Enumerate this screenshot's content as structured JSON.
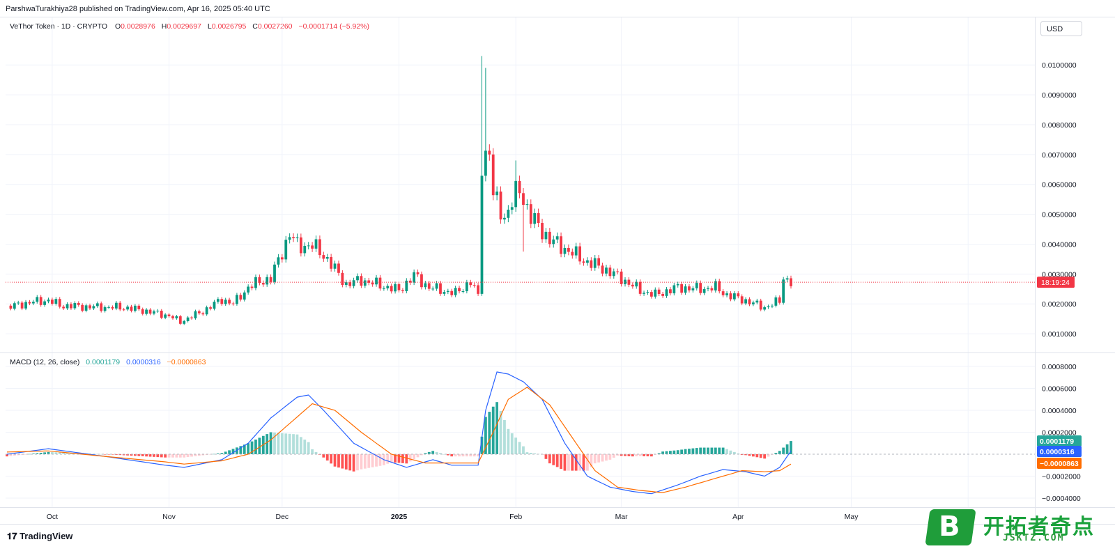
{
  "header": {
    "published_line": "ParshwaTurakhiya28 published on TradingView.com, Apr 16, 2025 05:40 UTC"
  },
  "symbol": {
    "name": "VeThor Token · 1D · CRYPTO",
    "open_label": "O",
    "open": "0.0028976",
    "high_label": "H",
    "high": "0.0029697",
    "low_label": "L",
    "low": "0.0026795",
    "close_label": "C",
    "close": "0.0027260",
    "change": "−0.0001714 (−5.92%)"
  },
  "currency_button": "USD",
  "countdown": "18:19:24",
  "macd": {
    "name": "MACD (12, 26, close)",
    "histogram": "0.0001179",
    "macd_line": "0.0000316",
    "signal_line": "−0.0000863"
  },
  "brand": {
    "tradingview": "TradingView"
  },
  "watermark": {
    "cn": "开拓者奇点",
    "en": "JSKTZ.COM",
    "badge": "B"
  },
  "colors": {
    "up": "#089981",
    "down": "#f23645",
    "macd_line": "#2962ff",
    "signal_line": "#ff6d00",
    "hist_up_strong": "#26a69a",
    "hist_up_weak": "#b2dfdb",
    "hist_down_strong": "#ff5252",
    "hist_down_weak": "#ffcdd2"
  },
  "chart_data": [
    {
      "type": "candlestick",
      "title": "VeThor Token · 1D · CRYPTO",
      "currency": "USD",
      "y_ticks": [
        "0.0100000",
        "0.0090000",
        "0.0080000",
        "0.0070000",
        "0.0060000",
        "0.0050000",
        "0.0040000",
        "0.0030000",
        "0.0020000",
        "0.0010000"
      ],
      "x_ticks": [
        "Oct",
        "Nov",
        "Dec",
        "2025",
        "Feb",
        "Mar",
        "Apr",
        "May"
      ],
      "ylim": [
        0.0005,
        0.0106
      ],
      "last_price": "0.0027260",
      "anchors": [
        [
          "2024-09-19",
          0.00188
        ],
        [
          "2024-09-25",
          0.00205
        ],
        [
          "2024-09-30",
          0.00212
        ],
        [
          "2024-10-03",
          0.00195
        ],
        [
          "2024-10-10",
          0.0019
        ],
        [
          "2024-10-20",
          0.00188
        ],
        [
          "2024-10-25",
          0.00178
        ],
        [
          "2024-11-01",
          0.0016
        ],
        [
          "2024-11-04",
          0.0014
        ],
        [
          "2024-11-10",
          0.00175
        ],
        [
          "2024-11-15",
          0.00215
        ],
        [
          "2024-11-18",
          0.002
        ],
        [
          "2024-11-22",
          0.00255
        ],
        [
          "2024-11-25",
          0.00275
        ],
        [
          "2024-11-28",
          0.00285
        ],
        [
          "2024-12-03",
          0.00435
        ],
        [
          "2024-12-05",
          0.00395
        ],
        [
          "2024-12-09",
          0.00395
        ],
        [
          "2024-12-12",
          0.00365
        ],
        [
          "2024-12-18",
          0.00265
        ],
        [
          "2024-12-22",
          0.0028
        ],
        [
          "2025-01-01",
          0.00245
        ],
        [
          "2025-01-05",
          0.00295
        ],
        [
          "2025-01-09",
          0.00255
        ],
        [
          "2025-01-16",
          0.00235
        ],
        [
          "2025-01-20",
          0.00275
        ],
        [
          "2025-01-22",
          0.00225
        ],
        [
          "2025-01-23",
          0.00675
        ],
        [
          "2025-01-25",
          0.0072
        ],
        [
          "2025-01-26",
          0.0056
        ],
        [
          "2025-01-29",
          0.0049
        ],
        [
          "2025-02-01",
          0.00565
        ],
        [
          "2025-02-02",
          0.00585
        ],
        [
          "2025-02-05",
          0.0049
        ],
        [
          "2025-02-10",
          0.00415
        ],
        [
          "2025-02-16",
          0.0037
        ],
        [
          "2025-02-20",
          0.0034
        ],
        [
          "2025-02-24",
          0.0032
        ],
        [
          "2025-03-01",
          0.00285
        ],
        [
          "2025-03-06",
          0.00245
        ],
        [
          "2025-03-10",
          0.0023
        ],
        [
          "2025-03-16",
          0.00255
        ],
        [
          "2025-03-22",
          0.0025
        ],
        [
          "2025-03-26",
          0.00255
        ],
        [
          "2025-03-29",
          0.0023
        ],
        [
          "2025-04-02",
          0.00215
        ],
        [
          "2025-04-08",
          0.00188
        ],
        [
          "2025-04-12",
          0.0021
        ],
        [
          "2025-04-13",
          0.0029
        ],
        [
          "2025-04-15",
          0.00272
        ]
      ],
      "spikes": [
        {
          "date": "2025-01-23",
          "high": 0.0103
        },
        {
          "date": "2025-01-24",
          "high": 0.0099
        },
        {
          "date": "2025-02-01",
          "high": 0.0068
        },
        {
          "date": "2025-02-03",
          "low": 0.00375
        }
      ]
    },
    {
      "type": "line",
      "title": "MACD (12, 26, close)",
      "y_ticks": [
        "0.0008000",
        "0.0006000",
        "0.0004000",
        "0.0002000",
        "−0.0002000",
        "−0.0004000"
      ],
      "ylim": [
        -0.00042,
        0.00084
      ],
      "series": [
        {
          "name": "MACD",
          "points": [
            [
              "2024-09-19",
              0.0
            ],
            [
              "2024-09-30",
              5e-05
            ],
            [
              "2024-10-15",
              -2e-05
            ],
            [
              "2024-10-31",
              -0.0001
            ],
            [
              "2024-11-05",
              -0.00012
            ],
            [
              "2024-11-15",
              -5e-05
            ],
            [
              "2024-11-22",
              0.0001
            ],
            [
              "2024-11-28",
              0.00033
            ],
            [
              "2024-12-05",
              0.00052
            ],
            [
              "2024-12-08",
              0.00054
            ],
            [
              "2024-12-12",
              0.0004
            ],
            [
              "2024-12-20",
              0.0001
            ],
            [
              "2024-12-28",
              -5e-05
            ],
            [
              "2025-01-03",
              -0.00012
            ],
            [
              "2025-01-10",
              -5e-05
            ],
            [
              "2025-01-15",
              -0.0001
            ],
            [
              "2025-01-22",
              -0.0001
            ],
            [
              "2025-01-24",
              0.0004
            ],
            [
              "2025-01-27",
              0.00075
            ],
            [
              "2025-01-30",
              0.00073
            ],
            [
              "2025-02-03",
              0.00066
            ],
            [
              "2025-02-08",
              0.0005
            ],
            [
              "2025-02-14",
              0.0001
            ],
            [
              "2025-02-20",
              -0.0002
            ],
            [
              "2025-02-26",
              -0.0003
            ],
            [
              "2025-03-04",
              -0.00034
            ],
            [
              "2025-03-09",
              -0.00036
            ],
            [
              "2025-03-16",
              -0.00028
            ],
            [
              "2025-03-22",
              -0.0002
            ],
            [
              "2025-03-28",
              -0.00014
            ],
            [
              "2025-04-03",
              -0.00016
            ],
            [
              "2025-04-08",
              -0.0002
            ],
            [
              "2025-04-12",
              -0.00012
            ],
            [
              "2025-04-15",
              3e-05
            ]
          ]
        },
        {
          "name": "Signal",
          "points": [
            [
              "2024-09-19",
              2e-05
            ],
            [
              "2024-09-30",
              3e-05
            ],
            [
              "2024-10-15",
              -2e-05
            ],
            [
              "2024-10-31",
              -7e-05
            ],
            [
              "2024-11-05",
              -9e-05
            ],
            [
              "2024-11-15",
              -6e-05
            ],
            [
              "2024-11-22",
              0.0
            ],
            [
              "2024-11-28",
              0.00013
            ],
            [
              "2024-12-05",
              0.00034
            ],
            [
              "2024-12-09",
              0.00046
            ],
            [
              "2024-12-15",
              0.0004
            ],
            [
              "2024-12-22",
              0.0002
            ],
            [
              "2024-12-30",
              0.0
            ],
            [
              "2025-01-08",
              -8e-05
            ],
            [
              "2025-01-15",
              -8e-05
            ],
            [
              "2025-01-22",
              -8e-05
            ],
            [
              "2025-01-26",
              0.0002
            ],
            [
              "2025-01-30",
              0.0005
            ],
            [
              "2025-02-04",
              0.00061
            ],
            [
              "2025-02-10",
              0.00045
            ],
            [
              "2025-02-16",
              0.00015
            ],
            [
              "2025-02-22",
              -0.00015
            ],
            [
              "2025-02-28",
              -0.0003
            ],
            [
              "2025-03-06",
              -0.00033
            ],
            [
              "2025-03-12",
              -0.00035
            ],
            [
              "2025-03-18",
              -0.0003
            ],
            [
              "2025-03-26",
              -0.00022
            ],
            [
              "2025-04-02",
              -0.00015
            ],
            [
              "2025-04-08",
              -0.00016
            ],
            [
              "2025-04-12",
              -0.00015
            ],
            [
              "2025-04-15",
              -9e-05
            ]
          ]
        }
      ]
    }
  ]
}
